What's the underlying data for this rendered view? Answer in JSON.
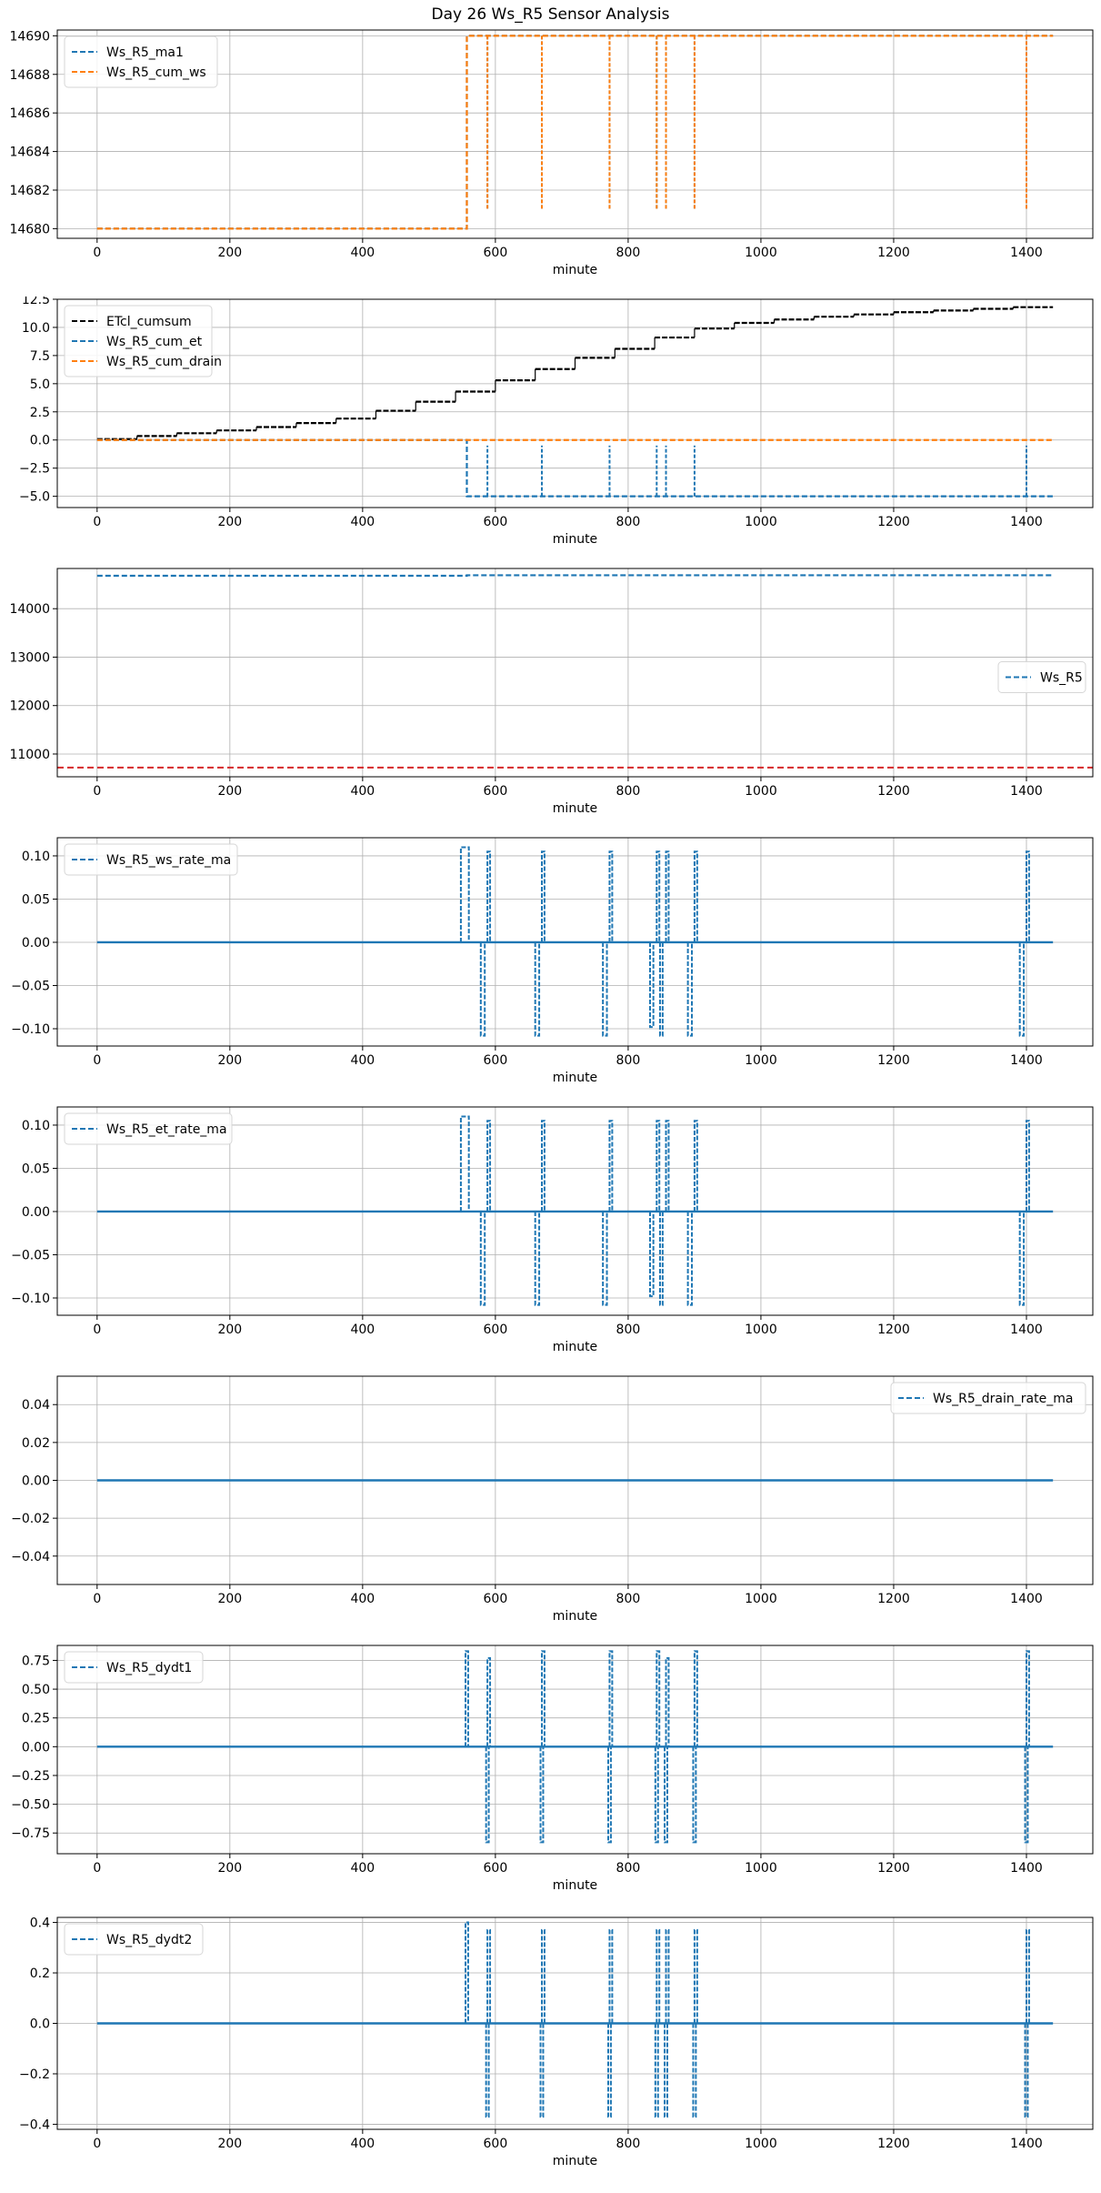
{
  "figure": {
    "title": "Day 26 Ws_R5 Sensor Analysis"
  },
  "colors": {
    "blue": "#1f77b4",
    "orange": "#ff7f0e",
    "black": "#000000",
    "red": "#d62728",
    "grid": "#b0b0b0"
  },
  "chart_data": [
    {
      "type": "line",
      "xlabel": "minute",
      "xlim": [
        -60,
        1500
      ],
      "ylim": [
        14679.5,
        14690.3
      ],
      "xticks": [
        0,
        200,
        400,
        600,
        800,
        1000,
        1200,
        1400
      ],
      "yticks": [
        14680,
        14682,
        14684,
        14686,
        14688,
        14690
      ],
      "ytick_decimals": 0,
      "grid": true,
      "legend": {
        "position": "top-left",
        "width": 168
      },
      "series": [
        {
          "name": "Ws_R5_ma1",
          "color": "#1f77b4",
          "dashed": true,
          "baseline": 14680,
          "steps": [
            [
              557,
              14690
            ]
          ],
          "spikes": [
            [
              588,
              14681
            ],
            [
              670,
              14681
            ],
            [
              772,
              14681
            ],
            [
              843,
              14681
            ],
            [
              857,
              14681
            ],
            [
              900,
              14681
            ],
            [
              1400,
              14681
            ]
          ]
        },
        {
          "name": "Ws_R5_cum_ws",
          "color": "#ff7f0e",
          "dashed": true,
          "baseline": 14680,
          "steps": [
            [
              557,
              14690
            ]
          ],
          "spikes": [
            [
              588,
              14681
            ],
            [
              670,
              14681
            ],
            [
              772,
              14681
            ],
            [
              843,
              14681
            ],
            [
              857,
              14681
            ],
            [
              900,
              14681
            ],
            [
              1400,
              14681
            ]
          ]
        }
      ]
    },
    {
      "type": "line",
      "xlabel": "minute",
      "xlim": [
        -60,
        1500
      ],
      "ylim": [
        -6.0,
        12.5
      ],
      "xticks": [
        0,
        200,
        400,
        600,
        800,
        1000,
        1200,
        1400
      ],
      "yticks": [
        -5.0,
        -2.5,
        0.0,
        2.5,
        5.0,
        7.5,
        10.0,
        12.5
      ],
      "ytick_decimals": 1,
      "grid": true,
      "legend": {
        "position": "top-left",
        "width": 162
      },
      "series": [
        {
          "name": "ETcl_cumsum",
          "color": "#000000",
          "dashed": true,
          "stairs_x": [
            0,
            60,
            120,
            180,
            240,
            300,
            360,
            420,
            480,
            540,
            600,
            660,
            720,
            780,
            840,
            900,
            960,
            1020,
            1080,
            1140,
            1200,
            1260,
            1320,
            1380,
            1440
          ],
          "stairs_y": [
            0.08,
            0.35,
            0.6,
            0.85,
            1.15,
            1.5,
            1.9,
            2.6,
            3.4,
            4.3,
            5.3,
            6.3,
            7.3,
            8.1,
            9.1,
            9.9,
            10.4,
            10.7,
            10.95,
            11.15,
            11.35,
            11.5,
            11.65,
            11.8
          ]
        },
        {
          "name": "Ws_R5_cum_et",
          "color": "#1f77b4",
          "dashed": true,
          "baseline": 0,
          "steps": [
            [
              557,
              -5
            ]
          ],
          "spikes": [
            [
              588,
              -0.5
            ],
            [
              670,
              -0.5
            ],
            [
              772,
              -0.5
            ],
            [
              843,
              -0.5
            ],
            [
              857,
              -0.5
            ],
            [
              900,
              -0.5
            ],
            [
              1400,
              -0.5
            ]
          ]
        },
        {
          "name": "Ws_R5_cum_drain",
          "color": "#ff7f0e",
          "dashed": true,
          "baseline": 0,
          "steps": [],
          "spikes": []
        }
      ]
    },
    {
      "type": "line",
      "xlabel": "minute",
      "xlim": [
        -60,
        1500
      ],
      "ylim": [
        10530,
        14830
      ],
      "xticks": [
        0,
        200,
        400,
        600,
        800,
        1000,
        1200,
        1400
      ],
      "yticks": [
        11000,
        12000,
        13000,
        14000
      ],
      "ytick_decimals": 0,
      "grid": true,
      "legend": {
        "position": "center-right",
        "width": 96
      },
      "hline": {
        "y": 10720,
        "color": "#d62728"
      },
      "series": [
        {
          "name": "Ws_R5",
          "color": "#1f77b4",
          "dashed": true,
          "baseline": 14680,
          "steps": [
            [
              557,
              14690
            ]
          ],
          "spikes": []
        }
      ]
    },
    {
      "type": "line",
      "xlabel": "minute",
      "xlim": [
        -60,
        1500
      ],
      "ylim": [
        -0.12,
        0.121
      ],
      "xticks": [
        0,
        200,
        400,
        600,
        800,
        1000,
        1200,
        1400
      ],
      "yticks": [
        -0.1,
        -0.05,
        0.0,
        0.05,
        0.1
      ],
      "ytick_decimals": 2,
      "grid": true,
      "legend": {
        "position": "top-left",
        "width": 190
      },
      "series": [
        {
          "name": "Ws_R5_ws_rate_ma",
          "color": "#1f77b4",
          "dashed": false,
          "baseline": 0,
          "steps": [],
          "spikes": [],
          "pulses": [
            [
              548,
              560,
              0.11
            ],
            [
              578,
              584,
              -0.108
            ],
            [
              588,
              592,
              0.105
            ],
            [
              660,
              666,
              -0.108
            ],
            [
              670,
              674,
              0.105
            ],
            [
              762,
              768,
              -0.108
            ],
            [
              772,
              776,
              0.105
            ],
            [
              833,
              838,
              -0.098
            ],
            [
              843,
              847,
              0.105
            ],
            [
              848,
              852,
              -0.108
            ],
            [
              857,
              861,
              0.105
            ],
            [
              890,
              896,
              -0.108
            ],
            [
              900,
              904,
              0.105
            ],
            [
              1390,
              1396,
              -0.108
            ],
            [
              1400,
              1404,
              0.105
            ]
          ]
        }
      ]
    },
    {
      "type": "line",
      "xlabel": "minute",
      "xlim": [
        -60,
        1500
      ],
      "ylim": [
        -0.12,
        0.121
      ],
      "xticks": [
        0,
        200,
        400,
        600,
        800,
        1000,
        1200,
        1400
      ],
      "yticks": [
        -0.1,
        -0.05,
        0.0,
        0.05,
        0.1
      ],
      "ytick_decimals": 2,
      "grid": true,
      "legend": {
        "position": "top-left",
        "width": 184
      },
      "series": [
        {
          "name": "Ws_R5_et_rate_ma",
          "color": "#1f77b4",
          "dashed": false,
          "baseline": 0,
          "steps": [],
          "spikes": [],
          "pulses": [
            [
              548,
              560,
              0.11
            ],
            [
              578,
              584,
              -0.108
            ],
            [
              588,
              592,
              0.105
            ],
            [
              660,
              666,
              -0.108
            ],
            [
              670,
              674,
              0.105
            ],
            [
              762,
              768,
              -0.108
            ],
            [
              772,
              776,
              0.105
            ],
            [
              833,
              838,
              -0.098
            ],
            [
              843,
              847,
              0.105
            ],
            [
              848,
              852,
              -0.108
            ],
            [
              857,
              861,
              0.105
            ],
            [
              890,
              896,
              -0.108
            ],
            [
              900,
              904,
              0.105
            ],
            [
              1390,
              1396,
              -0.108
            ],
            [
              1400,
              1404,
              0.105
            ]
          ]
        }
      ]
    },
    {
      "type": "line",
      "xlabel": "minute",
      "xlim": [
        -60,
        1500
      ],
      "ylim": [
        -0.055,
        0.055
      ],
      "xticks": [
        0,
        200,
        400,
        600,
        800,
        1000,
        1200,
        1400
      ],
      "yticks": [
        -0.04,
        -0.02,
        0.0,
        0.02,
        0.04
      ],
      "ytick_decimals": 2,
      "grid": true,
      "legend": {
        "position": "top-right",
        "width": 214
      },
      "series": [
        {
          "name": "Ws_R5_drain_rate_ma",
          "color": "#1f77b4",
          "dashed": false,
          "baseline": 0,
          "steps": [],
          "spikes": []
        }
      ]
    },
    {
      "type": "line",
      "xlabel": "minute",
      "xlim": [
        -60,
        1500
      ],
      "ylim": [
        -0.93,
        0.88
      ],
      "xticks": [
        0,
        200,
        400,
        600,
        800,
        1000,
        1200,
        1400
      ],
      "yticks": [
        -0.75,
        -0.5,
        -0.25,
        0.0,
        0.25,
        0.5,
        0.75
      ],
      "ytick_decimals": 2,
      "grid": true,
      "legend": {
        "position": "top-left",
        "width": 152
      },
      "series": [
        {
          "name": "Ws_R5_dydt1",
          "color": "#1f77b4",
          "dashed": false,
          "baseline": 0,
          "steps": [],
          "spikes": [],
          "pulses": [
            [
              555,
              559,
              0.83
            ],
            [
              586,
              590,
              -0.83
            ],
            [
              588,
              592,
              0.77
            ],
            [
              668,
              672,
              -0.83
            ],
            [
              670,
              674,
              0.83
            ],
            [
              770,
              774,
              -0.83
            ],
            [
              772,
              776,
              0.83
            ],
            [
              841,
              845,
              -0.83
            ],
            [
              843,
              847,
              0.83
            ],
            [
              855,
              859,
              -0.83
            ],
            [
              857,
              861,
              0.77
            ],
            [
              898,
              902,
              -0.83
            ],
            [
              900,
              904,
              0.83
            ],
            [
              1398,
              1402,
              -0.83
            ],
            [
              1400,
              1404,
              0.83
            ]
          ]
        }
      ]
    },
    {
      "type": "line",
      "xlabel": "minute",
      "xlim": [
        -60,
        1500
      ],
      "ylim": [
        -0.42,
        0.42
      ],
      "xticks": [
        0,
        200,
        400,
        600,
        800,
        1000,
        1200,
        1400
      ],
      "yticks": [
        -0.4,
        -0.2,
        0.0,
        0.2,
        0.4
      ],
      "ytick_decimals": 1,
      "grid": true,
      "legend": {
        "position": "top-left",
        "width": 152
      },
      "series": [
        {
          "name": "Ws_R5_dydt2",
          "color": "#1f77b4",
          "dashed": false,
          "baseline": 0,
          "steps": [],
          "spikes": [],
          "pulses": [
            [
              555,
              559,
              0.4
            ],
            [
              586,
              590,
              -0.37
            ],
            [
              588,
              592,
              0.37
            ],
            [
              668,
              672,
              -0.37
            ],
            [
              670,
              674,
              0.37
            ],
            [
              770,
              774,
              -0.37
            ],
            [
              772,
              776,
              0.37
            ],
            [
              841,
              845,
              -0.37
            ],
            [
              843,
              847,
              0.37
            ],
            [
              855,
              859,
              -0.37
            ],
            [
              857,
              861,
              0.37
            ],
            [
              898,
              902,
              -0.37
            ],
            [
              900,
              904,
              0.37
            ],
            [
              1398,
              1402,
              -0.37
            ],
            [
              1400,
              1404,
              0.37
            ]
          ]
        }
      ]
    }
  ]
}
